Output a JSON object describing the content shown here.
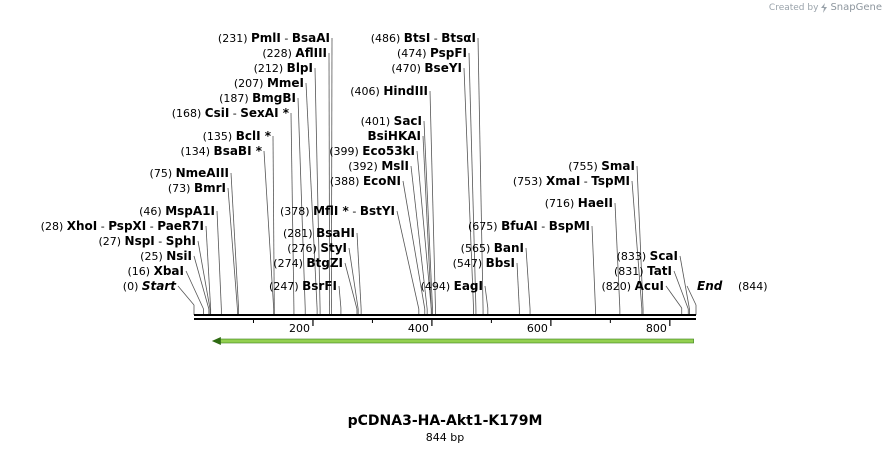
{
  "app": {
    "credit_prefix": "Created by",
    "credit_brand": "SnapGene"
  },
  "map": {
    "name": "pCDNA3-HA-Akt1-K179M",
    "length_label": "844 bp",
    "length": 844,
    "ruler_ticks": [
      "200",
      "400",
      "600",
      "800"
    ],
    "colors": {
      "feature_arrow": "#93d050",
      "line": "#000000",
      "text": "#000000"
    }
  },
  "sites": [
    {
      "id": "s01",
      "pos": "(231)",
      "parts": [
        {
          "t": "PmlI"
        },
        {
          "t": " - "
        },
        {
          "t": "BsaAI"
        }
      ],
      "at": 231
    },
    {
      "id": "s02",
      "pos": "(228)",
      "parts": [
        {
          "t": "AflIII"
        }
      ],
      "at": 228
    },
    {
      "id": "s03",
      "pos": "(212)",
      "parts": [
        {
          "t": "BlpI"
        }
      ],
      "at": 212
    },
    {
      "id": "s04",
      "pos": "(207)",
      "parts": [
        {
          "t": "MmeI"
        }
      ],
      "at": 207
    },
    {
      "id": "s05",
      "pos": "(187)",
      "parts": [
        {
          "t": "BmgBI"
        }
      ],
      "at": 187
    },
    {
      "id": "s06",
      "pos": "(168)",
      "parts": [
        {
          "t": "CsiI"
        },
        {
          "t": " - "
        },
        {
          "t": "SexAI *"
        }
      ],
      "at": 168
    },
    {
      "id": "s07",
      "pos": "(135)",
      "parts": [
        {
          "t": "BclI *"
        }
      ],
      "at": 135
    },
    {
      "id": "s08",
      "pos": "(134)",
      "parts": [
        {
          "t": "BsaBI *"
        }
      ],
      "at": 134
    },
    {
      "id": "s09",
      "pos": "(75)",
      "parts": [
        {
          "t": "NmeAIII"
        }
      ],
      "at": 75
    },
    {
      "id": "s10",
      "pos": "(73)",
      "parts": [
        {
          "t": "BmrI"
        }
      ],
      "at": 73
    },
    {
      "id": "s11",
      "pos": "(46)",
      "parts": [
        {
          "t": "MspA1I"
        }
      ],
      "at": 46
    },
    {
      "id": "s12",
      "pos": "(28)",
      "parts": [
        {
          "t": "XhoI"
        },
        {
          "t": " - "
        },
        {
          "t": "PspXI"
        },
        {
          "t": " - "
        },
        {
          "t": "PaeR7I"
        }
      ],
      "at": 28
    },
    {
      "id": "s13",
      "pos": "(27)",
      "parts": [
        {
          "t": "NspI"
        },
        {
          "t": " - "
        },
        {
          "t": "SphI"
        }
      ],
      "at": 27
    },
    {
      "id": "s14",
      "pos": "(25)",
      "parts": [
        {
          "t": "NsiI"
        }
      ],
      "at": 25
    },
    {
      "id": "s15",
      "pos": "(16)",
      "parts": [
        {
          "t": "XbaI"
        }
      ],
      "at": 16
    },
    {
      "id": "s16",
      "pos": "(0)",
      "parts": [
        {
          "t": "Start"
        }
      ],
      "at": 0
    },
    {
      "id": "s17",
      "pos": "(486)",
      "parts": [
        {
          "t": "BtsI"
        },
        {
          "t": " - "
        },
        {
          "t": "BtsαI"
        }
      ],
      "at": 486
    },
    {
      "id": "s18",
      "pos": "(474)",
      "parts": [
        {
          "t": "PspFI"
        }
      ],
      "at": 474
    },
    {
      "id": "s19",
      "pos": "(470)",
      "parts": [
        {
          "t": "BseYI"
        }
      ],
      "at": 470
    },
    {
      "id": "s20",
      "pos": "(406)",
      "parts": [
        {
          "t": "HindIII"
        }
      ],
      "at": 406
    },
    {
      "id": "s21",
      "pos": "(401)",
      "parts": [
        {
          "t": "SacI"
        }
      ],
      "at": 401
    },
    {
      "id": "s22",
      "pos": "",
      "parts": [
        {
          "t": "BsiHKAI"
        }
      ],
      "at": 399
    },
    {
      "id": "s23",
      "pos": "(399)",
      "parts": [
        {
          "t": "Eco53kI"
        }
      ],
      "at": 399
    },
    {
      "id": "s24",
      "pos": "(392)",
      "parts": [
        {
          "t": "MslI"
        }
      ],
      "at": 392
    },
    {
      "id": "s25",
      "pos": "(388)",
      "parts": [
        {
          "t": "EcoNI"
        }
      ],
      "at": 388
    },
    {
      "id": "s26",
      "pos": "(378)",
      "parts": [
        {
          "t": "MflI *"
        },
        {
          "t": " - "
        },
        {
          "t": "BstYI"
        }
      ],
      "at": 378
    },
    {
      "id": "s27",
      "pos": "(281)",
      "parts": [
        {
          "t": "BsaHI"
        }
      ],
      "at": 281
    },
    {
      "id": "s28",
      "pos": "(276)",
      "parts": [
        {
          "t": "StyI"
        }
      ],
      "at": 276
    },
    {
      "id": "s29",
      "pos": "(274)",
      "parts": [
        {
          "t": "BtgZI"
        }
      ],
      "at": 274
    },
    {
      "id": "s30",
      "pos": "(247)",
      "parts": [
        {
          "t": "BsrFI"
        }
      ],
      "at": 247
    },
    {
      "id": "s31",
      "pos": "(494)",
      "parts": [
        {
          "t": "EagI"
        }
      ],
      "at": 494
    },
    {
      "id": "s32",
      "pos": "(675)",
      "parts": [
        {
          "t": "BfuAI"
        },
        {
          "t": " - "
        },
        {
          "t": "BspMI"
        }
      ],
      "at": 675
    },
    {
      "id": "s33",
      "pos": "(565)",
      "parts": [
        {
          "t": "BanI"
        }
      ],
      "at": 565
    },
    {
      "id": "s34",
      "pos": "(547)",
      "parts": [
        {
          "t": "BbsI"
        }
      ],
      "at": 547
    },
    {
      "id": "s35",
      "pos": "(755)",
      "parts": [
        {
          "t": "SmaI"
        }
      ],
      "at": 755
    },
    {
      "id": "s36",
      "pos": "(753)",
      "parts": [
        {
          "t": "XmaI"
        },
        {
          "t": " - "
        },
        {
          "t": "TspMI"
        }
      ],
      "at": 753
    },
    {
      "id": "s37",
      "pos": "(716)",
      "parts": [
        {
          "t": "HaeII"
        }
      ],
      "at": 716
    },
    {
      "id": "s38",
      "pos": "(833)",
      "parts": [
        {
          "t": "ScaI"
        }
      ],
      "at": 833
    },
    {
      "id": "s39",
      "pos": "(831)",
      "parts": [
        {
          "t": "TatI"
        }
      ],
      "at": 831
    },
    {
      "id": "s40",
      "pos": "(820)",
      "parts": [
        {
          "t": "AcuI"
        }
      ],
      "at": 820
    },
    {
      "id": "s41",
      "pos": "(844)",
      "parts": [
        {
          "t": "End"
        }
      ],
      "at": 844
    }
  ]
}
